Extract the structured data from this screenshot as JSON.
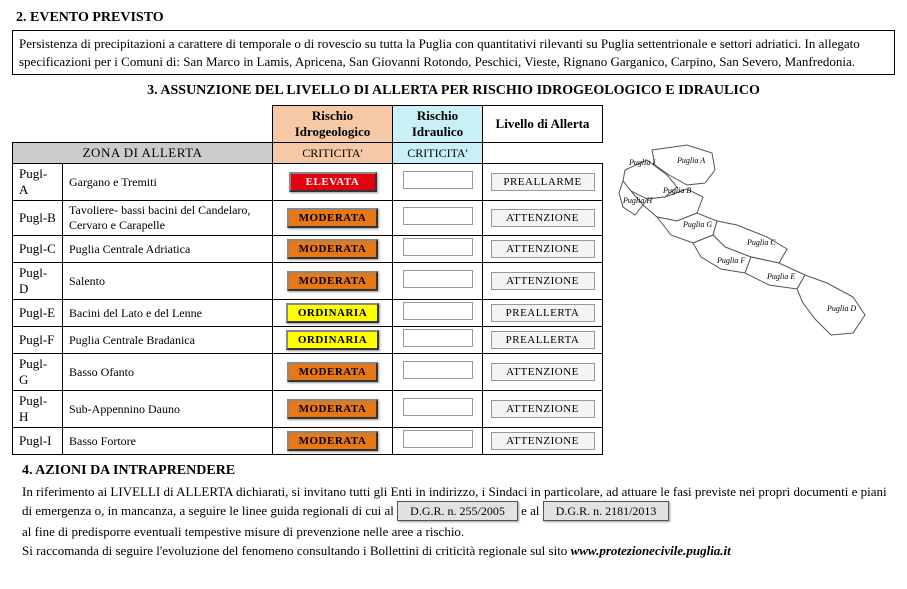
{
  "section2": {
    "title": "2.  EVENTO PREVISTO",
    "body": "Persistenza di precipitazioni a carattere di temporale o di rovescio su tutta la Puglia con quantitativi rilevanti su Puglia settentrionale e settori adriatici. In allegato specificazioni per i Comuni di: San Marco in Lamis, Apricena, San Giovanni Rotondo, Peschici, Vieste, Rignano Garganico, Carpino, San Severo, Manfredonia."
  },
  "section3": {
    "title": "3. ASSUNZIONE DEL LIVELLO DI ALLERTA PER RISCHIO IDROGEOLOGICO E IDRAULICO",
    "headers": {
      "zona": "ZONA DI ALLERTA",
      "idrogeo": "Rischio Idrogeologico",
      "idraul": "Rischio Idraulico",
      "livello": "Livello di Allerta",
      "crit": "CRITICITA'"
    },
    "header_colors": {
      "idrogeo_bg": "#f5c9a5",
      "idraul_bg": "#c8f0f6",
      "zona_bg": "#cccccc"
    },
    "levels": {
      "ELEVATA": {
        "bg": "#e3000f",
        "fg": "#ffffff"
      },
      "MODERATA": {
        "bg": "#e77817",
        "fg": "#000000"
      },
      "ORDINARIA": {
        "bg": "#ffff00",
        "fg": "#000000"
      }
    },
    "rows": [
      {
        "code": "Pugl-A",
        "name": "Gargano e Tremiti",
        "idrogeo": "ELEVATA",
        "livello": "PREALLARME"
      },
      {
        "code": "Pugl-B",
        "name": "Tavoliere- bassi bacini del Candelaro, Cervaro e Carapelle",
        "idrogeo": "MODERATA",
        "livello": "ATTENZIONE"
      },
      {
        "code": "Pugl-C",
        "name": "Puglia Centrale Adriatica",
        "idrogeo": "MODERATA",
        "livello": "ATTENZIONE"
      },
      {
        "code": "Pugl-D",
        "name": "Salento",
        "idrogeo": "MODERATA",
        "livello": "ATTENZIONE"
      },
      {
        "code": "Pugl-E",
        "name": "Bacini del Lato e del Lenne",
        "idrogeo": "ORDINARIA",
        "livello": "PREALLERTA"
      },
      {
        "code": "Pugl-F",
        "name": "Puglia Centrale Bradanica",
        "idrogeo": "ORDINARIA",
        "livello": "PREALLERTA"
      },
      {
        "code": "Pugl-G",
        "name": "Basso Ofanto",
        "idrogeo": "MODERATA",
        "livello": "ATTENZIONE"
      },
      {
        "code": "Pugl-H",
        "name": "Sub-Appennino Dauno",
        "idrogeo": "MODERATA",
        "livello": "ATTENZIONE"
      },
      {
        "code": "Pugl-I",
        "name": "Basso Fortore",
        "idrogeo": "MODERATA",
        "livello": "ATTENZIONE"
      }
    ],
    "map": {
      "labels": [
        "Puglia I",
        "Puglia A",
        "Puglia H",
        "Puglia B",
        "Puglia G",
        "Puglia C",
        "Puglia F",
        "Puglia E",
        "Puglia D"
      ],
      "stroke": "#555555",
      "fill": "#ffffff",
      "label_fontsize": 8
    }
  },
  "section4": {
    "title": "4. AZIONI DA INTRAPRENDERE",
    "p1a": "In riferimento ai LIVELLI di ALLERTA dichiarati, si invitano tutti gli Enti in indirizzo, i Sindaci in particolare, ad attuare le fasi previste nei propri documenti e piani di emergenza o, in mancanza, a seguire le linee guida regionali di cui al ",
    "dgr1": "D.G.R. n. 255/2005",
    "p1b": " e al ",
    "dgr2": "D.G.R. n. 2181/2013",
    "p2": "al fine di predisporre eventuali tempestive misure di prevenzione nelle aree a rischio.",
    "p3a": "Si raccomanda di seguire l'evoluzione del fenomeno consultando i Bollettini di criticità regionale sul sito ",
    "site": "www.protezionecivile.puglia.it"
  }
}
